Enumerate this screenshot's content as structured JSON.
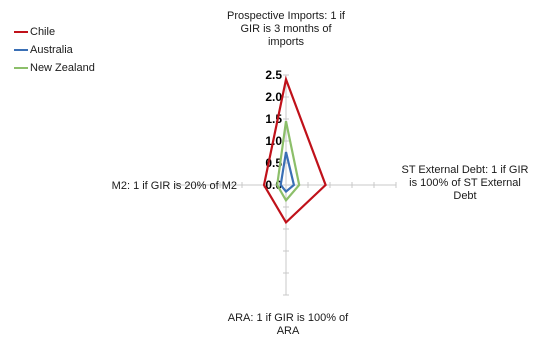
{
  "chart_data": {
    "type": "radar",
    "axes": [
      "Prospective Imports: 1 if GIR is 3 months of imports",
      "ST External Debt: 1 if GIR is 100% of ST External Debt",
      "ARA: 1 if GIR is 100% of ARA",
      "M2: 1 if GIR is 20% of M2"
    ],
    "axis_label_lines": [
      [
        "Prospective Imports: 1 if",
        "GIR is 3 months of",
        "imports"
      ],
      [
        "ST External Debt: 1 if GIR",
        "is 100% of ST External",
        "Debt"
      ],
      [
        "ARA: 1 if GIR is 100% of",
        "ARA"
      ],
      [
        "M2: 1 if GIR is 20% of M2"
      ]
    ],
    "ticks": [
      "0.0",
      "0.5",
      "1.0",
      "1.5",
      "2.0",
      "2.5"
    ],
    "tick_values": [
      0,
      0.5,
      1.0,
      1.5,
      2.0,
      2.5
    ],
    "range": [
      0,
      2.5
    ],
    "series": [
      {
        "name": "Chile",
        "color": "#c0111a",
        "values": [
          2.4,
          0.9,
          0.85,
          0.5
        ]
      },
      {
        "name": "Australia",
        "color": "#3a6fb5",
        "values": [
          0.75,
          0.18,
          0.15,
          0.12
        ]
      },
      {
        "name": "New Zealand",
        "color": "#8cbf6a",
        "values": [
          1.45,
          0.3,
          0.35,
          0.2
        ]
      }
    ],
    "legend_position": "top-left"
  }
}
